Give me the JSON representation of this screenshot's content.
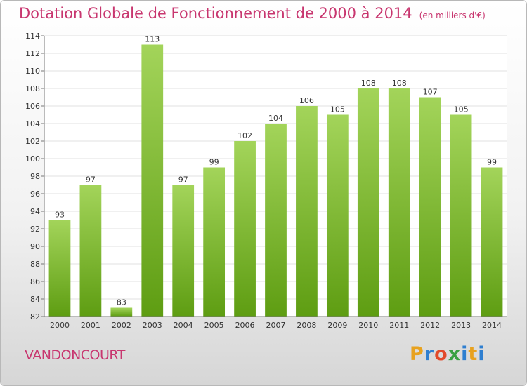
{
  "title": "Dotation Globale de Fonctionnement de 2000 à 2014",
  "subtitle": "(en milliers d'€)",
  "commune": "VANDONCOURT",
  "logo": {
    "text": "Proxiti",
    "letters": [
      {
        "ch": "P",
        "color": "#e8a21f"
      },
      {
        "ch": "r",
        "color": "#2f7fd0"
      },
      {
        "ch": "o",
        "color": "#e24a2a"
      },
      {
        "ch": "x",
        "color": "#3aa042"
      },
      {
        "ch": "i",
        "color": "#2f7fd0"
      },
      {
        "ch": "t",
        "color": "#e8a21f"
      },
      {
        "ch": "i",
        "color": "#2f7fd0"
      }
    ]
  },
  "colors": {
    "title": "#c8366f",
    "bar_top": "#a3d45a",
    "bar_bottom": "#5e9d12",
    "grid": "#e0e0e0",
    "axis": "#777777"
  },
  "chart_data": {
    "type": "bar",
    "categories": [
      "2000",
      "2001",
      "2002",
      "2003",
      "2004",
      "2005",
      "2006",
      "2007",
      "2008",
      "2009",
      "2010",
      "2011",
      "2012",
      "2013",
      "2014"
    ],
    "values": [
      93,
      97,
      83,
      113,
      97,
      99,
      102,
      104,
      106,
      105,
      108,
      108,
      107,
      105,
      99
    ],
    "title": "Dotation Globale de Fonctionnement de 2000 à 2014",
    "subtitle": "(en milliers d'€)",
    "xlabel": "",
    "ylabel": "",
    "ylim": [
      82,
      114
    ],
    "yticks": [
      82,
      84,
      86,
      88,
      90,
      92,
      94,
      96,
      98,
      100,
      102,
      104,
      106,
      108,
      110,
      112,
      114
    ],
    "grid": true,
    "legend": "none"
  }
}
